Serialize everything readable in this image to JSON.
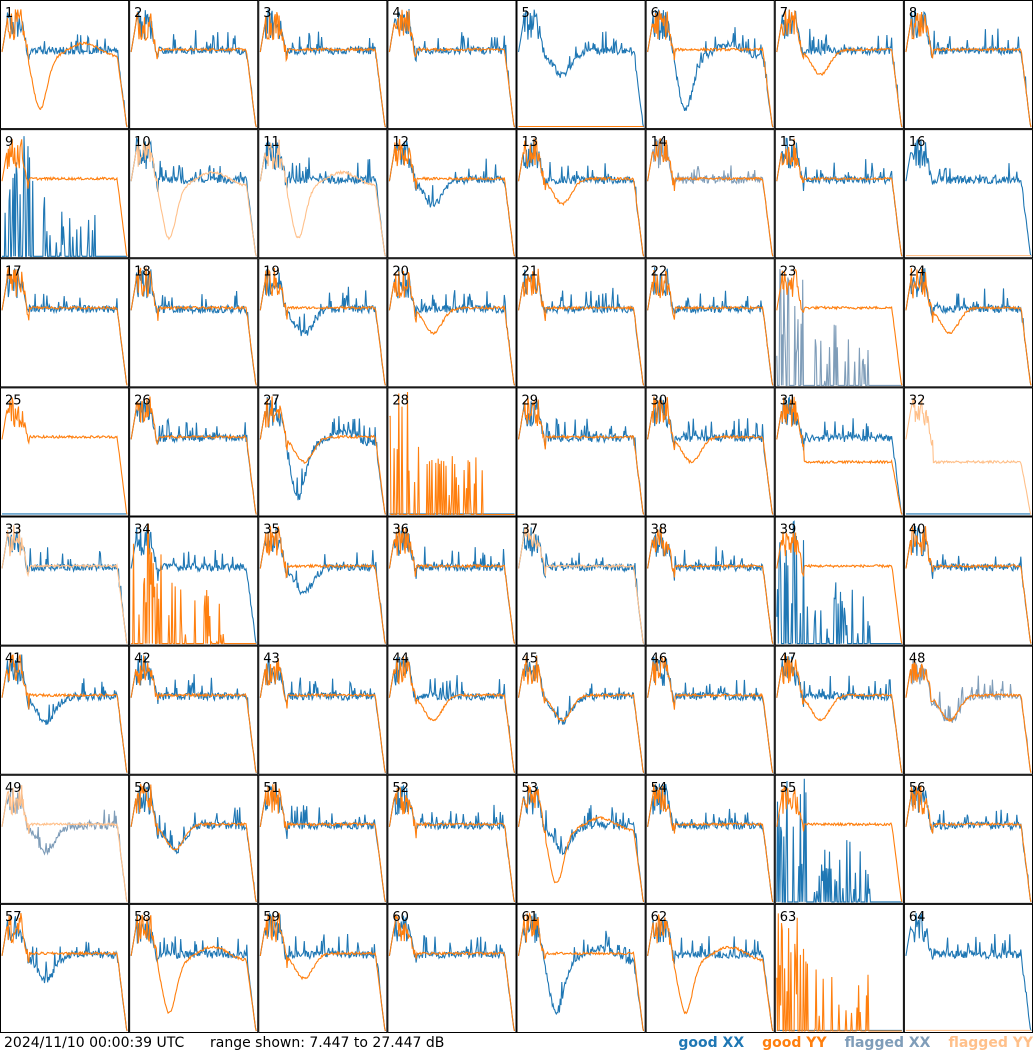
{
  "footer": {
    "timestamp": "2024/11/10 00:00:39 UTC",
    "range_text": "range shown: 7.447 to 27.447 dB"
  },
  "legend": [
    {
      "label": "good XX",
      "color": "#1f77b4"
    },
    {
      "label": "good YY",
      "color": "#ff7f0e"
    },
    {
      "label": "flagged XX",
      "color": "#7f9db9"
    },
    {
      "label": "flagged YY",
      "color": "#ffc08a"
    }
  ],
  "chart_data": {
    "type": "line",
    "ylim": [
      7.447,
      27.447
    ],
    "grid": false,
    "panels": [
      {
        "n": "1",
        "xx": "good",
        "yy": "good",
        "xx_shape": "normal",
        "yy_shape": "deepdip"
      },
      {
        "n": "2",
        "xx": "good",
        "yy": "good",
        "xx_shape": "normal",
        "yy_shape": "normal"
      },
      {
        "n": "3",
        "xx": "good",
        "yy": "good",
        "xx_shape": "normal",
        "yy_shape": "normal"
      },
      {
        "n": "4",
        "xx": "good",
        "yy": "good",
        "xx_shape": "normal",
        "yy_shape": "normal"
      },
      {
        "n": "5",
        "xx": "good",
        "yy": "good",
        "xx_shape": "dip",
        "yy_shape": "flatzero"
      },
      {
        "n": "6",
        "xx": "good",
        "yy": "good",
        "xx_shape": "deepdip",
        "yy_shape": "normal"
      },
      {
        "n": "7",
        "xx": "good",
        "yy": "good",
        "xx_shape": "normal",
        "yy_shape": "dip"
      },
      {
        "n": "8",
        "xx": "good",
        "yy": "good",
        "xx_shape": "normal",
        "yy_shape": "normal"
      },
      {
        "n": "9",
        "xx": "good",
        "yy": "good",
        "xx_shape": "spikes",
        "yy_shape": "normal"
      },
      {
        "n": "10",
        "xx": "good",
        "yy": "flagged",
        "xx_shape": "normal",
        "yy_shape": "deepdip"
      },
      {
        "n": "11",
        "xx": "good",
        "yy": "flagged",
        "xx_shape": "normal",
        "yy_shape": "deepdip"
      },
      {
        "n": "12",
        "xx": "good",
        "yy": "good",
        "xx_shape": "dip",
        "yy_shape": "normal"
      },
      {
        "n": "13",
        "xx": "good",
        "yy": "good",
        "xx_shape": "normal",
        "yy_shape": "dip"
      },
      {
        "n": "14",
        "xx": "flagged",
        "yy": "good",
        "xx_shape": "normal",
        "yy_shape": "normal"
      },
      {
        "n": "15",
        "xx": "good",
        "yy": "good",
        "xx_shape": "normal",
        "yy_shape": "normal"
      },
      {
        "n": "16",
        "xx": "good",
        "yy": "flagged",
        "xx_shape": "normal",
        "yy_shape": "flatzero"
      },
      {
        "n": "17",
        "xx": "good",
        "yy": "good",
        "xx_shape": "normal",
        "yy_shape": "normal"
      },
      {
        "n": "18",
        "xx": "good",
        "yy": "good",
        "xx_shape": "normal",
        "yy_shape": "normal"
      },
      {
        "n": "19",
        "xx": "good",
        "yy": "good",
        "xx_shape": "dip",
        "yy_shape": "normal"
      },
      {
        "n": "20",
        "xx": "good",
        "yy": "good",
        "xx_shape": "normal",
        "yy_shape": "dip"
      },
      {
        "n": "21",
        "xx": "good",
        "yy": "good",
        "xx_shape": "normal",
        "yy_shape": "normal"
      },
      {
        "n": "22",
        "xx": "good",
        "yy": "good",
        "xx_shape": "normal",
        "yy_shape": "normal"
      },
      {
        "n": "23",
        "xx": "flagged",
        "yy": "good",
        "xx_shape": "spikes",
        "yy_shape": "normal"
      },
      {
        "n": "24",
        "xx": "good",
        "yy": "good",
        "xx_shape": "normal",
        "yy_shape": "dip"
      },
      {
        "n": "25",
        "xx": "good",
        "yy": "good",
        "xx_shape": "flatzero",
        "yy_shape": "normal"
      },
      {
        "n": "26",
        "xx": "good",
        "yy": "good",
        "xx_shape": "normal",
        "yy_shape": "normal"
      },
      {
        "n": "27",
        "xx": "good",
        "yy": "good",
        "xx_shape": "deepdip",
        "yy_shape": "dip"
      },
      {
        "n": "28",
        "xx": "good",
        "yy": "good",
        "xx_shape": "flatzero",
        "yy_shape": "spikes"
      },
      {
        "n": "29",
        "xx": "good",
        "yy": "good",
        "xx_shape": "normal",
        "yy_shape": "normal"
      },
      {
        "n": "30",
        "xx": "good",
        "yy": "good",
        "xx_shape": "normal",
        "yy_shape": "dip"
      },
      {
        "n": "31",
        "xx": "good",
        "yy": "good",
        "xx_shape": "normal",
        "yy_shape": "low"
      },
      {
        "n": "32",
        "xx": "good",
        "yy": "flagged",
        "xx_shape": "flatzero",
        "yy_shape": "low"
      },
      {
        "n": "33",
        "xx": "good",
        "yy": "flagged",
        "xx_shape": "normal",
        "yy_shape": "normal"
      },
      {
        "n": "34",
        "xx": "good",
        "yy": "good",
        "xx_shape": "normal",
        "yy_shape": "spikes"
      },
      {
        "n": "35",
        "xx": "good",
        "yy": "good",
        "xx_shape": "dip",
        "yy_shape": "normal"
      },
      {
        "n": "36",
        "xx": "good",
        "yy": "good",
        "xx_shape": "normal",
        "yy_shape": "normal"
      },
      {
        "n": "37",
        "xx": "good",
        "yy": "flagged",
        "xx_shape": "normal",
        "yy_shape": "normal"
      },
      {
        "n": "38",
        "xx": "good",
        "yy": "good",
        "xx_shape": "normal",
        "yy_shape": "normal"
      },
      {
        "n": "39",
        "xx": "good",
        "yy": "good",
        "xx_shape": "spikes",
        "yy_shape": "normal"
      },
      {
        "n": "40",
        "xx": "good",
        "yy": "good",
        "xx_shape": "normal",
        "yy_shape": "normal"
      },
      {
        "n": "41",
        "xx": "good",
        "yy": "good",
        "xx_shape": "dip",
        "yy_shape": "normal"
      },
      {
        "n": "42",
        "xx": "good",
        "yy": "good",
        "xx_shape": "normal",
        "yy_shape": "normal"
      },
      {
        "n": "43",
        "xx": "good",
        "yy": "good",
        "xx_shape": "normal",
        "yy_shape": "normal"
      },
      {
        "n": "44",
        "xx": "good",
        "yy": "good",
        "xx_shape": "normal",
        "yy_shape": "dip"
      },
      {
        "n": "45",
        "xx": "good",
        "yy": "good",
        "xx_shape": "dip",
        "yy_shape": "dip"
      },
      {
        "n": "46",
        "xx": "good",
        "yy": "good",
        "xx_shape": "normal",
        "yy_shape": "normal"
      },
      {
        "n": "47",
        "xx": "good",
        "yy": "good",
        "xx_shape": "normal",
        "yy_shape": "dip"
      },
      {
        "n": "48",
        "xx": "flagged",
        "yy": "good",
        "xx_shape": "dip",
        "yy_shape": "dip"
      },
      {
        "n": "49",
        "xx": "flagged",
        "yy": "flagged",
        "xx_shape": "dip",
        "yy_shape": "normal"
      },
      {
        "n": "50",
        "xx": "good",
        "yy": "good",
        "xx_shape": "dip",
        "yy_shape": "dip"
      },
      {
        "n": "51",
        "xx": "good",
        "yy": "good",
        "xx_shape": "normal",
        "yy_shape": "normal"
      },
      {
        "n": "52",
        "xx": "good",
        "yy": "good",
        "xx_shape": "normal",
        "yy_shape": "normal"
      },
      {
        "n": "53",
        "xx": "good",
        "yy": "good",
        "xx_shape": "dip",
        "yy_shape": "deepdip"
      },
      {
        "n": "54",
        "xx": "good",
        "yy": "good",
        "xx_shape": "normal",
        "yy_shape": "normal"
      },
      {
        "n": "55",
        "xx": "good",
        "yy": "good",
        "xx_shape": "spikes",
        "yy_shape": "normal"
      },
      {
        "n": "56",
        "xx": "good",
        "yy": "good",
        "xx_shape": "normal",
        "yy_shape": "normal"
      },
      {
        "n": "57",
        "xx": "good",
        "yy": "good",
        "xx_shape": "dip",
        "yy_shape": "normal"
      },
      {
        "n": "58",
        "xx": "good",
        "yy": "good",
        "xx_shape": "normal",
        "yy_shape": "deepdip"
      },
      {
        "n": "59",
        "xx": "good",
        "yy": "good",
        "xx_shape": "normal",
        "yy_shape": "dip"
      },
      {
        "n": "60",
        "xx": "good",
        "yy": "good",
        "xx_shape": "normal",
        "yy_shape": "normal"
      },
      {
        "n": "61",
        "xx": "good",
        "yy": "good",
        "xx_shape": "deepdip",
        "yy_shape": "normal"
      },
      {
        "n": "62",
        "xx": "good",
        "yy": "good",
        "xx_shape": "normal",
        "yy_shape": "deepdip"
      },
      {
        "n": "63",
        "xx": "good",
        "yy": "good",
        "xx_shape": "flatzero",
        "yy_shape": "spikes"
      },
      {
        "n": "64",
        "xx": "good",
        "yy": "flagged",
        "xx_shape": "normal",
        "yy_shape": "flatzero"
      }
    ]
  }
}
